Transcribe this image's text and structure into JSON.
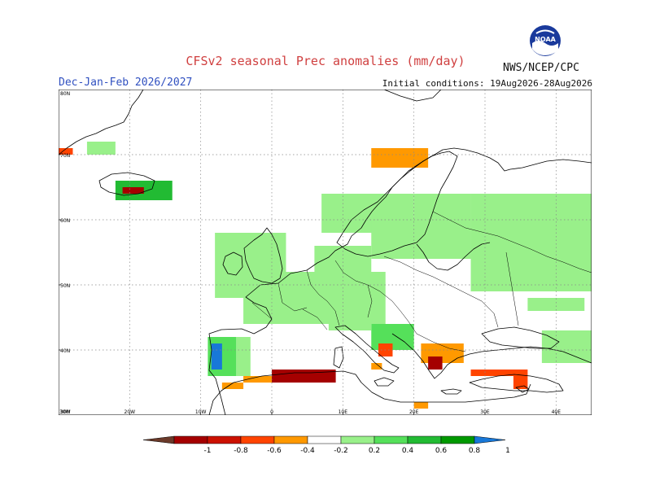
{
  "header": {
    "title": "CFSv2 seasonal Prec anomalies (mm/day)",
    "season": "Dec-Jan-Feb 2026/2027",
    "initial_conditions": "Initial conditions: 19Aug2026-28Aug2026",
    "agency": "NWS/NCEP/CPC",
    "logo_text": "NOAA",
    "logo_icon": "noaa-logo-icon"
  },
  "map": {
    "lon_range": [
      -30,
      45
    ],
    "lat_range": [
      30,
      80
    ],
    "lat_labels": [
      "80N",
      "70N",
      "60N",
      "50N",
      "40N",
      "30N"
    ],
    "lon_labels": [
      "30W",
      "20W",
      "10W",
      "0",
      "10E",
      "20E",
      "30E",
      "40E"
    ],
    "grid": "dotted",
    "projection": "lat-lon",
    "anomaly_patches": [
      {
        "lat": [
          58,
          64
        ],
        "lon": [
          7,
          20
        ],
        "level": 0.3
      },
      {
        "lat": [
          48,
          58
        ],
        "lon": [
          -8,
          2
        ],
        "level": 0.3
      },
      {
        "lat": [
          44,
          52
        ],
        "lon": [
          -4,
          16
        ],
        "level": 0.35
      },
      {
        "lat": [
          50,
          56
        ],
        "lon": [
          6,
          14
        ],
        "level": 0.3
      },
      {
        "lat": [
          54,
          60
        ],
        "lon": [
          14,
          28
        ],
        "level": 0.3
      },
      {
        "lat": [
          49,
          64
        ],
        "lon": [
          28,
          45
        ],
        "level": 0.25
      },
      {
        "lat": [
          57,
          64
        ],
        "lon": [
          20,
          28
        ],
        "level": 0.3
      },
      {
        "lat": [
          36,
          42
        ],
        "lon": [
          -9,
          -5
        ],
        "level": 0.45
      },
      {
        "lat": [
          37,
          41
        ],
        "lon": [
          -8.5,
          -7
        ],
        "level": 1.05
      },
      {
        "lat": [
          36,
          42
        ],
        "lon": [
          -5,
          -3
        ],
        "level": 0.25
      },
      {
        "lat": [
          40,
          44
        ],
        "lon": [
          14,
          20
        ],
        "level": 0.5
      },
      {
        "lat": [
          43,
          46
        ],
        "lon": [
          8,
          14
        ],
        "level": 0.3
      },
      {
        "lat": [
          63,
          66
        ],
        "lon": [
          -22,
          -14
        ],
        "level": 0.6
      },
      {
        "lat": [
          70,
          72
        ],
        "lon": [
          -26,
          -22
        ],
        "level": 0.3
      },
      {
        "lat": [
          38,
          43
        ],
        "lon": [
          38,
          45
        ],
        "level": 0.25
      },
      {
        "lat": [
          46,
          48
        ],
        "lon": [
          36,
          44
        ],
        "level": 0.25
      },
      {
        "lat": [
          68,
          71
        ],
        "lon": [
          14,
          22
        ],
        "level": -0.3
      },
      {
        "lat": [
          64,
          65
        ],
        "lon": [
          -21,
          -18
        ],
        "level": -0.85
      },
      {
        "lat": [
          35,
          37
        ],
        "lon": [
          0,
          9
        ],
        "level": -0.85
      },
      {
        "lat": [
          35,
          36
        ],
        "lon": [
          -4,
          0
        ],
        "level": -0.3
      },
      {
        "lat": [
          38,
          41
        ],
        "lon": [
          21,
          27
        ],
        "level": -0.3
      },
      {
        "lat": [
          37,
          39
        ],
        "lon": [
          22,
          24
        ],
        "level": -0.85
      },
      {
        "lat": [
          36,
          37
        ],
        "lon": [
          28,
          35
        ],
        "level": -0.45
      },
      {
        "lat": [
          34,
          37
        ],
        "lon": [
          34,
          36
        ],
        "level": -0.55
      },
      {
        "lat": [
          39,
          41
        ],
        "lon": [
          15,
          17
        ],
        "level": -0.45
      },
      {
        "lat": [
          37,
          38
        ],
        "lon": [
          14,
          15.5
        ],
        "level": -0.3
      },
      {
        "lat": [
          31,
          32
        ],
        "lon": [
          20,
          22
        ],
        "level": -0.3
      },
      {
        "lat": [
          34,
          35
        ],
        "lon": [
          -7,
          -4
        ],
        "level": -0.3
      },
      {
        "lat": [
          70,
          71
        ],
        "lon": [
          -30,
          -28
        ],
        "level": -0.55
      }
    ]
  },
  "colorbar": {
    "labels": [
      "-1",
      "-0.8",
      "-0.6",
      "-0.4",
      "-0.2",
      "0.2",
      "0.4",
      "0.6",
      "0.8",
      "1"
    ],
    "colors": [
      "#6b3a2a",
      "#a50000",
      "#cc1100",
      "#ff4400",
      "#ff9900",
      "#ffffff",
      "#99f08a",
      "#55e05a",
      "#22bb33",
      "#009900",
      "#1878d8"
    ]
  }
}
